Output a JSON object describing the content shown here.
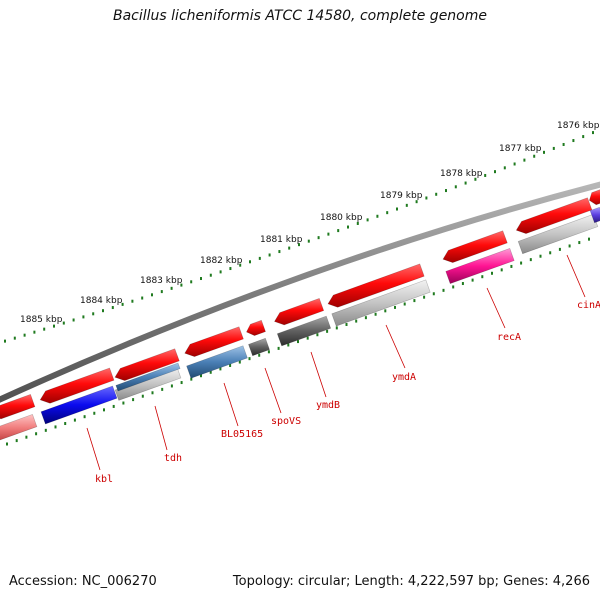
{
  "title": "Bacillus licheniformis ATCC 14580, complete genome",
  "footer": {
    "accession": "Accession: NC_006270",
    "topology": "Topology: circular; Length: 4,222,597 bp; Genes: 4,266"
  },
  "colors": {
    "forward_gene": "#e81010",
    "label_red": "#cc0000",
    "tick_green": "#1f7a1f",
    "backbone": "#808080"
  },
  "kbp_labels": [
    "1876 kbp",
    "1877 kbp",
    "1878 kbp",
    "1879 kbp",
    "1880 kbp",
    "1881 kbp",
    "1882 kbp",
    "1883 kbp",
    "1884 kbp",
    "1885 kbp"
  ],
  "gene_labels": [
    "kbl",
    "tdh",
    "BL05165",
    "spoVS",
    "ymdB",
    "ymdA",
    "recA",
    "cinA"
  ]
}
